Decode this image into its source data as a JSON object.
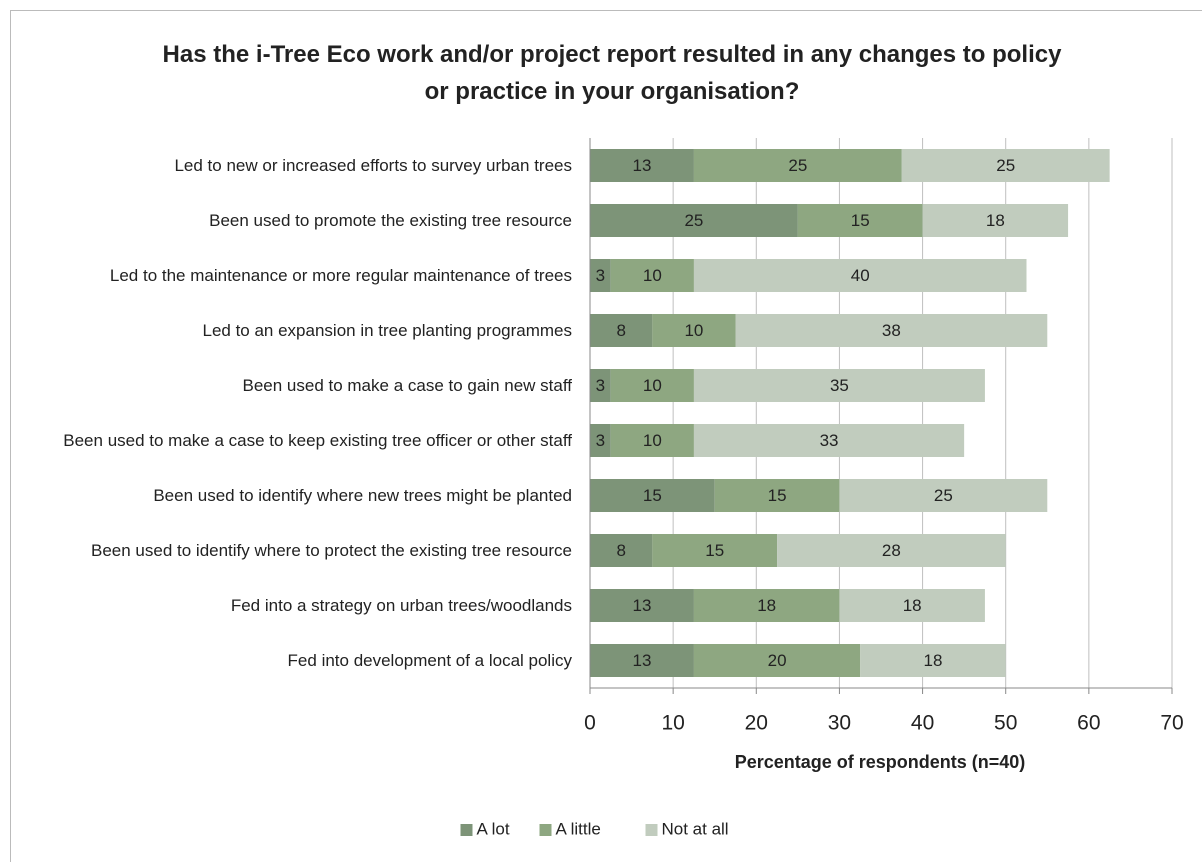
{
  "chart_data": {
    "type": "stacked-bar-horizontal",
    "title": "Has the i-Tree Eco work and/or project report resulted in any changes to policy or practice in your organisation?",
    "categories": [
      "Led to new or increased efforts to survey urban trees",
      "Been used to promote the existing tree resource",
      "Led to the maintenance or more regular maintenance of trees",
      "Led to an expansion in tree planting programmes",
      "Been used to make a case to gain new staff",
      "Been used to make a case to keep existing tree officer or other staff",
      "Been used to identify where new trees might be planted",
      "Been used to identify where to protect the existing tree resource",
      "Fed into a strategy on urban trees/woodlands",
      "Fed into development of a local policy"
    ],
    "series": [
      {
        "name": "A lot",
        "color": "#7d9478",
        "values": [
          12.5,
          25,
          2.5,
          7.5,
          2.5,
          2.5,
          15,
          7.5,
          12.5,
          12.5
        ],
        "value_labels": [
          "13",
          "25",
          "3",
          "8",
          "3",
          "3",
          "15",
          "8",
          "13",
          "13"
        ]
      },
      {
        "name": "A little",
        "color": "#8ea781",
        "values": [
          25,
          15,
          10,
          10,
          10,
          10,
          15,
          15,
          17.5,
          20
        ],
        "value_labels": [
          "25",
          "15",
          "10",
          "10",
          "10",
          "10",
          "15",
          "15",
          "18",
          "20"
        ]
      },
      {
        "name": "Not at all",
        "color": "#c1ccbe",
        "values": [
          25,
          17.5,
          40,
          37.5,
          35,
          32.5,
          25,
          27.5,
          17.5,
          17.5
        ],
        "value_labels": [
          "25",
          "18",
          "40",
          "38",
          "35",
          "33",
          "25",
          "28",
          "18",
          "18"
        ]
      }
    ],
    "xlabel": "Percentage of respondents (n=40)",
    "xlim": [
      0,
      70
    ],
    "xticks": [
      0,
      10,
      20,
      30,
      40,
      50,
      60,
      70
    ],
    "grid": true,
    "legend": "bottom"
  }
}
